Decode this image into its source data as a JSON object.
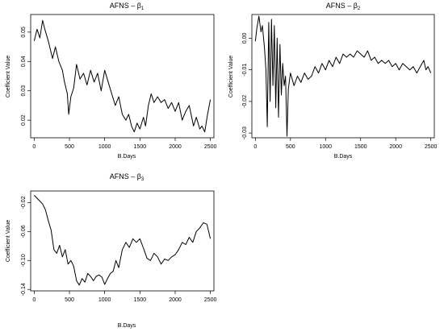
{
  "charts": [
    {
      "type": "line",
      "title_main": "AFNS – β",
      "title_sub": "1",
      "xlabel": "B.Days",
      "ylabel": "Coefficient Value",
      "xlim": [
        -50,
        2550
      ],
      "ylim": [
        0.014,
        0.056
      ],
      "xticks": [
        0,
        500,
        1000,
        1500,
        2000,
        2500
      ],
      "yticks": [
        0.02,
        0.03,
        0.04,
        0.05
      ],
      "ytick_labels": [
        "0.02",
        "0.03",
        "0.04",
        "0.05"
      ],
      "x": [
        0,
        40,
        80,
        120,
        150,
        200,
        260,
        300,
        350,
        400,
        430,
        470,
        490,
        520,
        560,
        600,
        650,
        700,
        750,
        800,
        850,
        900,
        950,
        1000,
        1050,
        1100,
        1150,
        1200,
        1250,
        1300,
        1340,
        1380,
        1420,
        1460,
        1500,
        1550,
        1580,
        1620,
        1660,
        1700,
        1750,
        1800,
        1850,
        1900,
        1950,
        2000,
        2050,
        2100,
        2150,
        2200,
        2260,
        2300,
        2350,
        2380,
        2420,
        2460,
        2500
      ],
      "y": [
        0.047,
        0.051,
        0.048,
        0.054,
        0.051,
        0.047,
        0.041,
        0.045,
        0.04,
        0.037,
        0.033,
        0.029,
        0.022,
        0.028,
        0.031,
        0.039,
        0.034,
        0.036,
        0.032,
        0.037,
        0.033,
        0.036,
        0.03,
        0.037,
        0.033,
        0.029,
        0.025,
        0.028,
        0.022,
        0.02,
        0.022,
        0.018,
        0.016,
        0.019,
        0.017,
        0.021,
        0.018,
        0.025,
        0.029,
        0.026,
        0.028,
        0.026,
        0.027,
        0.024,
        0.026,
        0.023,
        0.026,
        0.02,
        0.023,
        0.025,
        0.018,
        0.021,
        0.017,
        0.018,
        0.016,
        0.022,
        0.027
      ]
    },
    {
      "type": "line",
      "title_main": "AFNS – β",
      "title_sub": "2",
      "xlabel": "B.Days",
      "ylabel": "Coefficient Value",
      "xlim": [
        -50,
        2550
      ],
      "ylim": [
        -0.0315,
        0.0075
      ],
      "xticks": [
        0,
        500,
        1000,
        1500,
        2000,
        2500
      ],
      "yticks": [
        0.0,
        -0.01,
        -0.02,
        -0.03
      ],
      "ytick_labels": [
        "0.00",
        "-0.01",
        "-0.02",
        "-0.03"
      ],
      "x": [
        0,
        20,
        50,
        80,
        100,
        130,
        150,
        170,
        190,
        210,
        230,
        250,
        270,
        290,
        310,
        330,
        350,
        370,
        390,
        410,
        430,
        450,
        470,
        500,
        550,
        600,
        650,
        700,
        750,
        800,
        850,
        900,
        950,
        1000,
        1050,
        1100,
        1150,
        1200,
        1250,
        1300,
        1350,
        1400,
        1450,
        1500,
        1550,
        1600,
        1650,
        1700,
        1750,
        1800,
        1850,
        1900,
        1950,
        2000,
        2050,
        2100,
        2150,
        2200,
        2250,
        2300,
        2350,
        2400,
        2430,
        2460,
        2500
      ],
      "y": [
        -0.001,
        0.003,
        0.007,
        0.002,
        0.004,
        -0.003,
        -0.01,
        -0.028,
        0.005,
        -0.02,
        0.006,
        -0.015,
        0.004,
        -0.022,
        0.0,
        -0.025,
        -0.002,
        -0.018,
        -0.008,
        -0.015,
        -0.012,
        -0.031,
        -0.016,
        -0.011,
        -0.015,
        -0.012,
        -0.014,
        -0.011,
        -0.013,
        -0.012,
        -0.009,
        -0.011,
        -0.008,
        -0.01,
        -0.007,
        -0.009,
        -0.006,
        -0.008,
        -0.005,
        -0.006,
        -0.005,
        -0.006,
        -0.004,
        -0.005,
        -0.006,
        -0.004,
        -0.007,
        -0.006,
        -0.008,
        -0.007,
        -0.008,
        -0.007,
        -0.009,
        -0.008,
        -0.01,
        -0.008,
        -0.009,
        -0.01,
        -0.009,
        -0.011,
        -0.009,
        -0.007,
        -0.01,
        -0.009,
        -0.011
      ]
    },
    {
      "type": "line",
      "title_main": "AFNS – β",
      "title_sub": "3",
      "xlabel": "B.Days",
      "ylabel": "Coefficient Value",
      "xlim": [
        -50,
        2550
      ],
      "ylim": [
        -0.142,
        -0.004
      ],
      "xticks": [
        0,
        500,
        1000,
        1500,
        2000,
        2500
      ],
      "yticks": [
        -0.02,
        -0.06,
        -0.1,
        -0.14
      ],
      "ytick_labels": [
        "-0.02",
        "-0.06",
        "-0.10",
        "-0.14"
      ],
      "x": [
        0,
        40,
        80,
        120,
        160,
        200,
        240,
        280,
        320,
        360,
        400,
        440,
        480,
        520,
        560,
        600,
        640,
        680,
        720,
        760,
        800,
        840,
        880,
        920,
        960,
        1000,
        1040,
        1080,
        1120,
        1160,
        1200,
        1250,
        1300,
        1350,
        1400,
        1450,
        1500,
        1550,
        1600,
        1650,
        1700,
        1750,
        1800,
        1850,
        1900,
        1950,
        2000,
        2050,
        2100,
        2150,
        2200,
        2250,
        2300,
        2350,
        2400,
        2450,
        2500
      ],
      "y": [
        -0.01,
        -0.014,
        -0.018,
        -0.022,
        -0.03,
        -0.045,
        -0.058,
        -0.085,
        -0.09,
        -0.079,
        -0.095,
        -0.085,
        -0.105,
        -0.1,
        -0.108,
        -0.128,
        -0.134,
        -0.125,
        -0.13,
        -0.118,
        -0.122,
        -0.128,
        -0.122,
        -0.12,
        -0.123,
        -0.133,
        -0.125,
        -0.118,
        -0.115,
        -0.1,
        -0.11,
        -0.085,
        -0.075,
        -0.082,
        -0.07,
        -0.075,
        -0.07,
        -0.083,
        -0.097,
        -0.1,
        -0.09,
        -0.095,
        -0.105,
        -0.098,
        -0.1,
        -0.095,
        -0.092,
        -0.085,
        -0.075,
        -0.078,
        -0.068,
        -0.075,
        -0.06,
        -0.055,
        -0.048,
        -0.05,
        -0.07
      ]
    }
  ]
}
